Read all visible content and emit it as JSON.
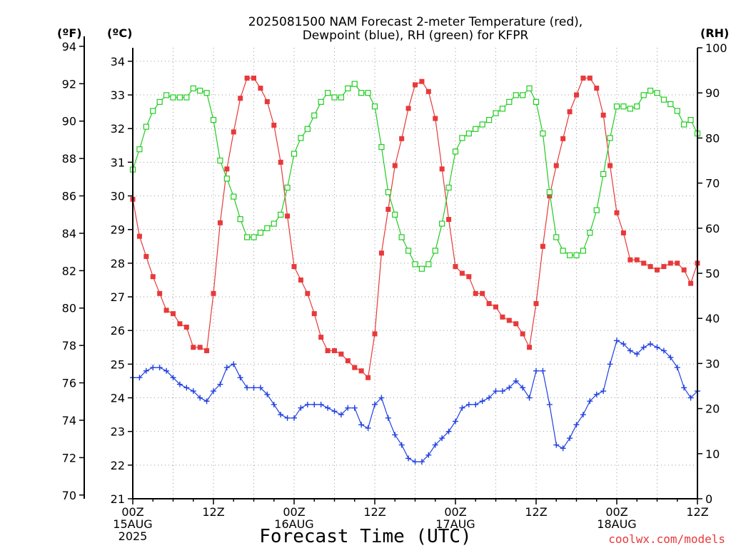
{
  "chart_data": {
    "type": "line",
    "title": [
      "2025081500 NAM Forecast 2-meter Temperature (red),",
      "Dewpoint (blue), RH (green) for KFPR"
    ],
    "xlabel": "Forecast Time (UTC)",
    "watermark": "coolwx.com/models",
    "units": {
      "f": "(ºF)",
      "c": "(ºC)",
      "rh": "(RH)"
    },
    "x_hours": [
      0,
      72
    ],
    "x_ticks": [
      {
        "h": 0,
        "lines": [
          "00Z",
          "15AUG",
          "2025"
        ]
      },
      {
        "h": 12,
        "lines": [
          "12Z"
        ]
      },
      {
        "h": 24,
        "lines": [
          "00Z",
          "16AUG"
        ]
      },
      {
        "h": 36,
        "lines": [
          "12Z"
        ]
      },
      {
        "h": 48,
        "lines": [
          "00Z",
          "17AUG"
        ]
      },
      {
        "h": 60,
        "lines": [
          "12Z"
        ]
      },
      {
        "h": 72,
        "lines": [
          "00Z",
          "18AUG"
        ]
      },
      {
        "h": 84,
        "lines": [
          "12Z"
        ]
      }
    ],
    "y_celsius": {
      "range": [
        21,
        34.4
      ],
      "ticks": [
        21,
        22,
        23,
        24,
        25,
        26,
        27,
        28,
        29,
        30,
        31,
        32,
        33,
        34
      ]
    },
    "y_fahrenheit": {
      "ticks": [
        70,
        72,
        74,
        76,
        78,
        80,
        82,
        84,
        86,
        88,
        90,
        92,
        94
      ]
    },
    "y_rh": {
      "range": [
        0,
        100
      ],
      "ticks": [
        0,
        10,
        20,
        30,
        40,
        50,
        60,
        70,
        80,
        90,
        100
      ]
    },
    "grid": true,
    "series": [
      {
        "name": "Temperature (red)",
        "axis": "c",
        "color": "#e8393a",
        "marker": "filled-square",
        "x": [
          0,
          1,
          2,
          3,
          4,
          5,
          6,
          7,
          8,
          9,
          10,
          11,
          12,
          13,
          14,
          15,
          16,
          17,
          18,
          19,
          20,
          21,
          22,
          23,
          24,
          25,
          26,
          27,
          28,
          29,
          30,
          31,
          32,
          33,
          34,
          35,
          36,
          37,
          38,
          39,
          40,
          41,
          42,
          43,
          44,
          45,
          46,
          47,
          48,
          49,
          50,
          51,
          52,
          53,
          54,
          55,
          56,
          57,
          58,
          59,
          60,
          61,
          62,
          63,
          64,
          65,
          66,
          67,
          68,
          69,
          70,
          71,
          72,
          73,
          74,
          75,
          76,
          77,
          78,
          79,
          80,
          81,
          82,
          83,
          84
        ],
        "values": [
          29.9,
          28.8,
          28.2,
          27.6,
          27.1,
          26.6,
          26.5,
          26.2,
          26.1,
          25.5,
          25.5,
          25.4,
          27.1,
          29.2,
          30.8,
          31.9,
          32.9,
          33.5,
          33.5,
          33.2,
          32.8,
          32.1,
          31.0,
          29.4,
          27.9,
          27.5,
          27.1,
          26.5,
          25.8,
          25.4,
          25.4,
          25.3,
          25.1,
          24.9,
          24.8,
          24.6,
          25.9,
          28.3,
          29.6,
          30.9,
          31.7,
          32.6,
          33.3,
          33.4,
          33.1,
          32.3,
          30.8,
          29.3,
          27.9,
          27.7,
          27.6,
          27.1,
          27.1,
          26.8,
          26.7,
          26.4,
          26.3,
          26.2,
          25.9,
          25.5,
          26.8,
          28.5,
          30.0,
          30.9,
          31.7,
          32.5,
          33.0,
          33.5,
          33.5,
          33.2,
          32.4,
          30.9,
          29.5,
          28.9,
          28.1,
          28.1,
          28.0,
          27.9,
          27.8,
          27.9,
          28.0,
          28.0,
          27.8,
          27.4,
          28.0
        ]
      },
      {
        "name": "Dewpoint (blue)",
        "axis": "c",
        "color": "#2040e0",
        "marker": "plus",
        "x": [
          0,
          1,
          2,
          3,
          4,
          5,
          6,
          7,
          8,
          9,
          10,
          11,
          12,
          13,
          14,
          15,
          16,
          17,
          18,
          19,
          20,
          21,
          22,
          23,
          24,
          25,
          26,
          27,
          28,
          29,
          30,
          31,
          32,
          33,
          34,
          35,
          36,
          37,
          38,
          39,
          40,
          41,
          42,
          43,
          44,
          45,
          46,
          47,
          48,
          49,
          50,
          51,
          52,
          53,
          54,
          55,
          56,
          57,
          58,
          59,
          60,
          61,
          62,
          63,
          64,
          65,
          66,
          67,
          68,
          69,
          70,
          71,
          72,
          73,
          74,
          75,
          76,
          77,
          78,
          79,
          80,
          81,
          82,
          83,
          84
        ],
        "values": [
          24.6,
          24.6,
          24.8,
          24.9,
          24.9,
          24.8,
          24.6,
          24.4,
          24.3,
          24.2,
          24.0,
          23.9,
          24.2,
          24.4,
          24.9,
          25.0,
          24.6,
          24.3,
          24.3,
          24.3,
          24.1,
          23.8,
          23.5,
          23.4,
          23.4,
          23.7,
          23.8,
          23.8,
          23.8,
          23.7,
          23.6,
          23.5,
          23.7,
          23.7,
          23.2,
          23.1,
          23.8,
          24.0,
          23.4,
          22.9,
          22.6,
          22.2,
          22.1,
          22.1,
          22.3,
          22.6,
          22.8,
          23.0,
          23.3,
          23.7,
          23.8,
          23.8,
          23.9,
          24.0,
          24.2,
          24.2,
          24.3,
          24.5,
          24.3,
          24.0,
          24.8,
          24.8,
          23.8,
          22.6,
          22.5,
          22.8,
          23.2,
          23.5,
          23.9,
          24.1,
          24.2,
          25.0,
          25.7,
          25.6,
          25.4,
          25.3,
          25.5,
          25.6,
          25.5,
          25.4,
          25.2,
          24.9,
          24.3,
          24.0,
          24.2
        ]
      },
      {
        "name": "RH (green)",
        "axis": "rh",
        "color": "#22cc22",
        "marker": "open-square",
        "x": [
          0,
          1,
          2,
          3,
          4,
          5,
          6,
          7,
          8,
          9,
          10,
          11,
          12,
          13,
          14,
          15,
          16,
          17,
          18,
          19,
          20,
          21,
          22,
          23,
          24,
          25,
          26,
          27,
          28,
          29,
          30,
          31,
          32,
          33,
          34,
          35,
          36,
          37,
          38,
          39,
          40,
          41,
          42,
          43,
          44,
          45,
          46,
          47,
          48,
          49,
          50,
          51,
          52,
          53,
          54,
          55,
          56,
          57,
          58,
          59,
          60,
          61,
          62,
          63,
          64,
          65,
          66,
          67,
          68,
          69,
          70,
          71,
          72,
          73,
          74,
          75,
          76,
          77,
          78,
          79,
          80,
          81,
          82,
          83,
          84
        ],
        "values": [
          73,
          77.5,
          82.5,
          86,
          88,
          89.5,
          89,
          89,
          89,
          91,
          90.5,
          90,
          84,
          75,
          71,
          67,
          62,
          58,
          58,
          59,
          60,
          61,
          63,
          69,
          76.5,
          80,
          82,
          85,
          88,
          90,
          89,
          89,
          91,
          92,
          90,
          90,
          87,
          78,
          68,
          63,
          58,
          55,
          52,
          51,
          52,
          55,
          61,
          69,
          77,
          80,
          81,
          82,
          83,
          84,
          85.5,
          86.5,
          88,
          89.5,
          89.5,
          91,
          88,
          81,
          68,
          58,
          55,
          54,
          54,
          55,
          59,
          64,
          72,
          80,
          87,
          87,
          86.5,
          87,
          89.5,
          90.5,
          90,
          88.5,
          87.5,
          86,
          83,
          84,
          81
        ]
      }
    ]
  }
}
